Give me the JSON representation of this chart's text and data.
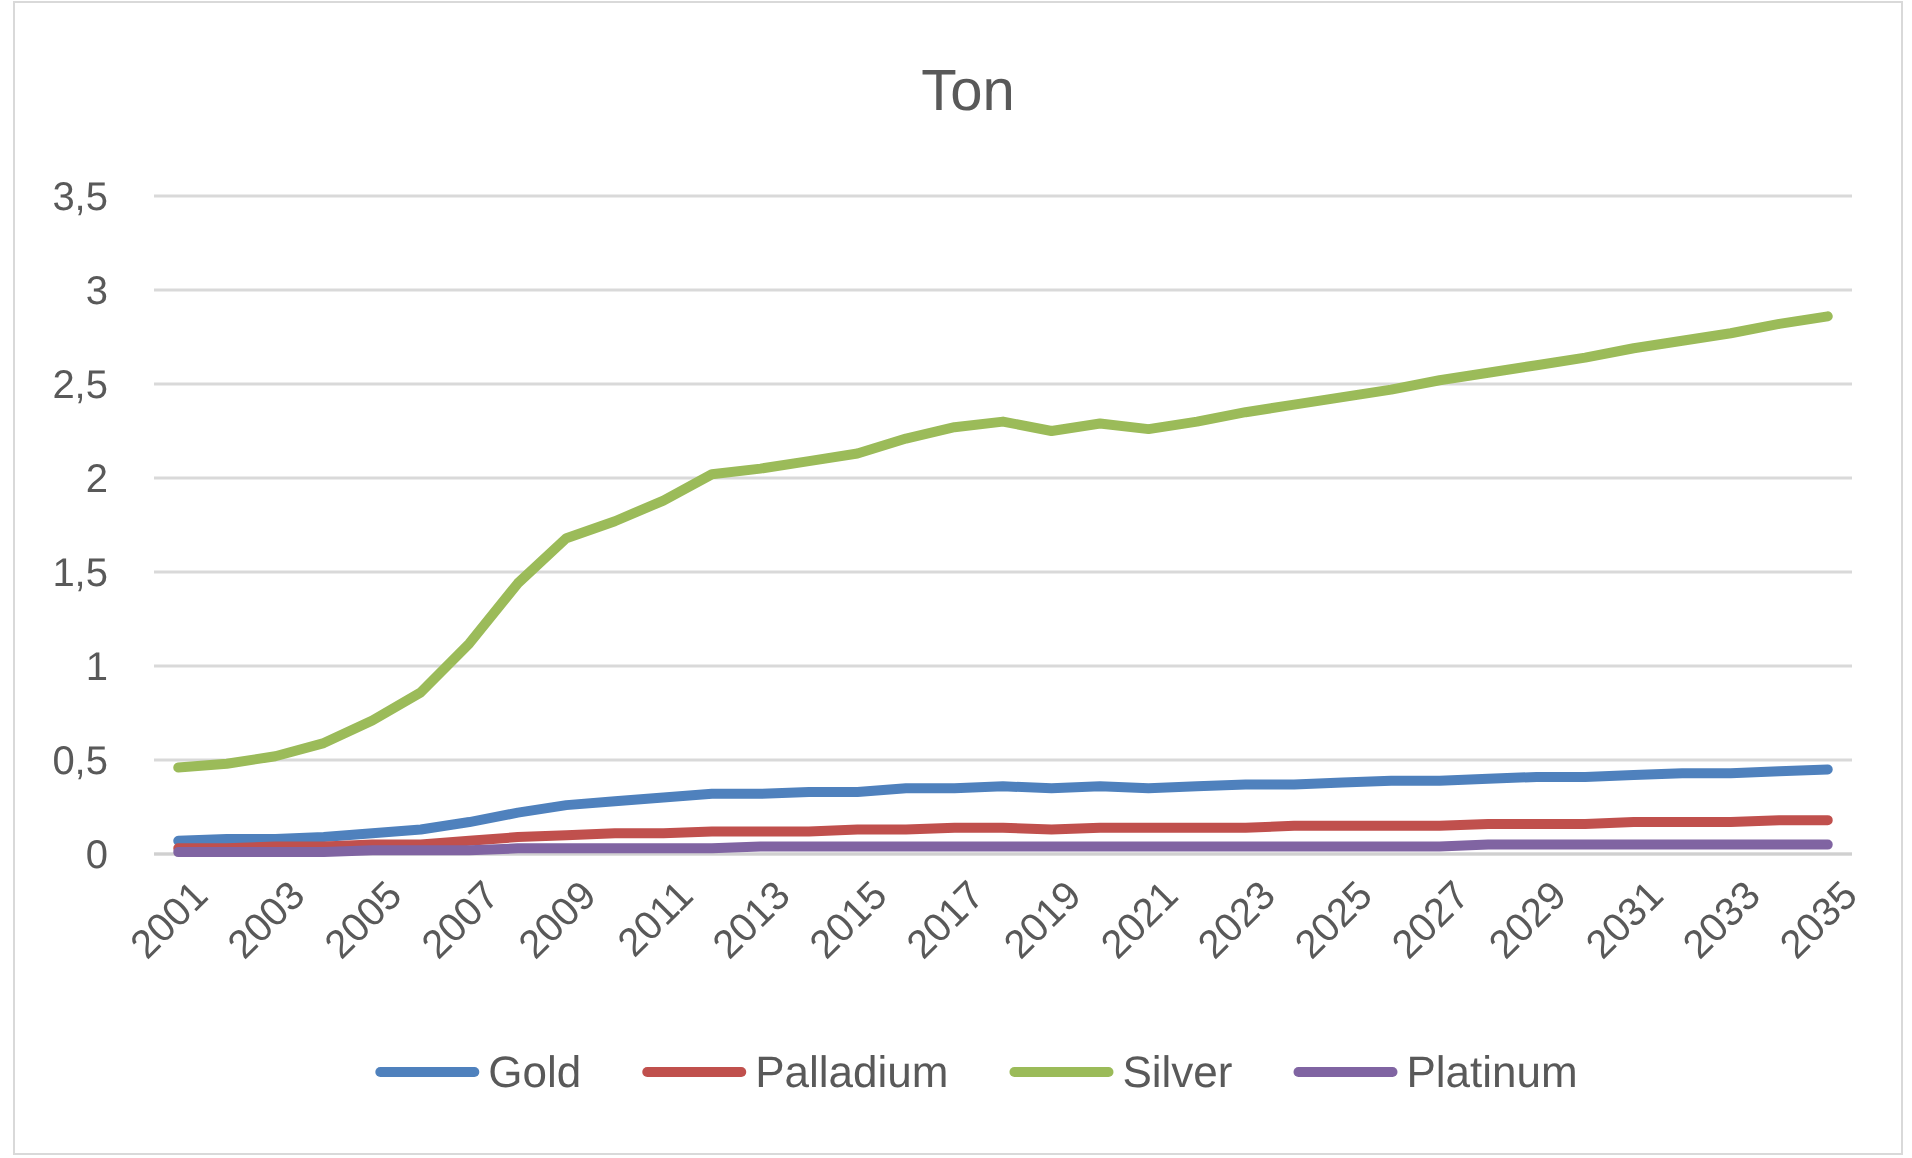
{
  "chart_data": {
    "type": "line",
    "title": "Ton",
    "categories": [
      "2001",
      null,
      "2003",
      null,
      "2005",
      null,
      "2007",
      null,
      "2009",
      null,
      "2011",
      null,
      "2013",
      null,
      "2015",
      null,
      "2017",
      null,
      "2019",
      null,
      "2021",
      null,
      "2023",
      null,
      "2025",
      null,
      "2027",
      null,
      "2029",
      null,
      "2031",
      null,
      "2033",
      null,
      "2035"
    ],
    "series": [
      {
        "name": "Gold",
        "color": "#4f81bd",
        "values": [
          0.07,
          0.08,
          0.08,
          0.09,
          0.11,
          0.13,
          0.17,
          0.22,
          0.26,
          0.28,
          0.3,
          0.32,
          0.32,
          0.33,
          0.33,
          0.35,
          0.35,
          0.36,
          0.35,
          0.36,
          0.35,
          0.36,
          0.37,
          0.37,
          0.38,
          0.39,
          0.39,
          0.4,
          0.41,
          0.41,
          0.42,
          0.43,
          0.43,
          0.44,
          0.45
        ]
      },
      {
        "name": "Palladium",
        "color": "#c0504d",
        "values": [
          0.03,
          0.03,
          0.04,
          0.04,
          0.05,
          0.05,
          0.07,
          0.09,
          0.1,
          0.11,
          0.11,
          0.12,
          0.12,
          0.12,
          0.13,
          0.13,
          0.14,
          0.14,
          0.13,
          0.14,
          0.14,
          0.14,
          0.14,
          0.15,
          0.15,
          0.15,
          0.15,
          0.16,
          0.16,
          0.16,
          0.17,
          0.17,
          0.17,
          0.18,
          0.18
        ]
      },
      {
        "name": "Silver",
        "color": "#9bbb59",
        "values": [
          0.46,
          0.48,
          0.52,
          0.59,
          0.71,
          0.86,
          1.12,
          1.44,
          1.68,
          1.77,
          1.88,
          2.02,
          2.05,
          2.09,
          2.13,
          2.21,
          2.27,
          2.3,
          2.25,
          2.29,
          2.26,
          2.3,
          2.35,
          2.39,
          2.43,
          2.47,
          2.52,
          2.56,
          2.6,
          2.64,
          2.69,
          2.73,
          2.77,
          2.82,
          2.86
        ]
      },
      {
        "name": "Platinum",
        "color": "#8064a2",
        "values": [
          0.01,
          0.01,
          0.01,
          0.01,
          0.02,
          0.02,
          0.02,
          0.03,
          0.03,
          0.03,
          0.03,
          0.03,
          0.04,
          0.04,
          0.04,
          0.04,
          0.04,
          0.04,
          0.04,
          0.04,
          0.04,
          0.04,
          0.04,
          0.04,
          0.04,
          0.04,
          0.04,
          0.05,
          0.05,
          0.05,
          0.05,
          0.05,
          0.05,
          0.05,
          0.05
        ]
      }
    ],
    "ylim": [
      0,
      3.5
    ],
    "yticks": [
      0,
      {
        "value": 0.5,
        "label": "0,5"
      },
      1,
      {
        "value": 1.5,
        "label": "1,5"
      },
      2,
      {
        "value": 2.5,
        "label": "2,5"
      },
      3,
      {
        "value": 3.5,
        "label": "3,5"
      }
    ],
    "grid": "y",
    "legend": "bottom"
  }
}
